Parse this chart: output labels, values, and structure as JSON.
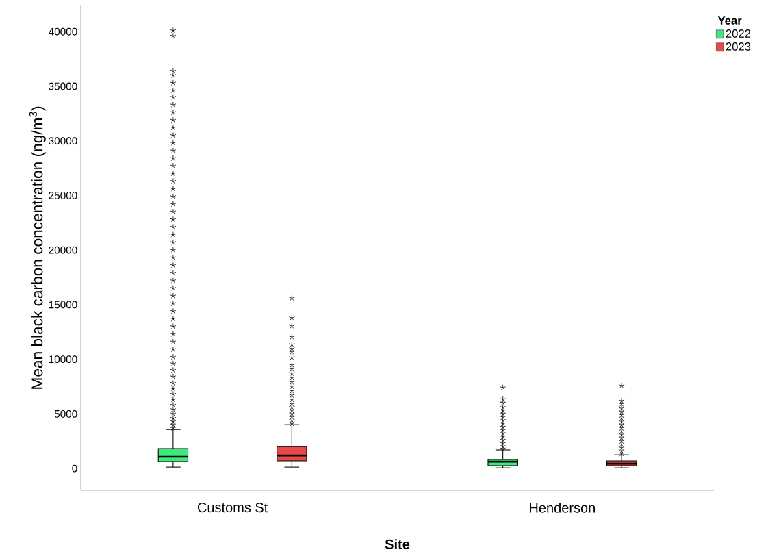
{
  "chart_data": {
    "type": "box",
    "xlabel": "Site",
    "ylabel": "Mean black carbon concentration (ng/m$^{3}$)",
    "legend_title": "Year",
    "categories": [
      "Customs St",
      "Henderson"
    ],
    "ylim": [
      -2000,
      42400
    ],
    "yticks": [
      0,
      5000,
      10000,
      15000,
      20000,
      25000,
      30000,
      35000,
      40000
    ],
    "legend": "top right",
    "marker": "star",
    "grid": false,
    "series": [
      {
        "name": "2022",
        "color": "#3ee87a",
        "boxes": [
          {
            "low": 125,
            "q1": 630,
            "median": 1070,
            "q3": 1820,
            "high": 3570,
            "outliers": [
              3700,
              4000,
              4300,
              4600,
              5000,
              5400,
              5800,
              6300,
              6800,
              7300,
              7800,
              8400,
              9000,
              9600,
              10200,
              10900,
              11600,
              12300,
              13000,
              13700,
              14400,
              15100,
              15800,
              16500,
              17200,
              17900,
              18600,
              19300,
              20000,
              20700,
              21400,
              22100,
              22800,
              23500,
              24200,
              24900,
              25600,
              26300,
              27000,
              27700,
              28400,
              29100,
              29800,
              30500,
              31200,
              31900,
              32600,
              33300,
              34000,
              34600,
              35300,
              36000,
              36400,
              39600,
              40100
            ]
          },
          {
            "low": 60,
            "q1": 250,
            "median": 630,
            "q3": 820,
            "high": 1700,
            "outliers": [
              1800,
              2000,
              2300,
              2600,
              2900,
              3200,
              3500,
              3800,
              4100,
              4400,
              4700,
              5000,
              5300,
              5600,
              6000,
              6330,
              7400
            ]
          }
        ]
      },
      {
        "name": "2023",
        "color": "#e84848",
        "boxes": [
          {
            "low": 125,
            "q1": 690,
            "median": 1190,
            "q3": 2000,
            "high": 4010,
            "outliers": [
              4100,
              4400,
              4700,
              5000,
              5300,
              5600,
              5900,
              6300,
              6700,
              7100,
              7500,
              7900,
              8300,
              8700,
              9100,
              9470,
              10160,
              10660,
              10970,
              11350,
              12040,
              13040,
              13800,
              15600
            ]
          },
          {
            "low": 60,
            "q1": 250,
            "median": 440,
            "q3": 690,
            "high": 1250,
            "outliers": [
              1350,
              1600,
              1900,
              2200,
              2500,
              2800,
              3100,
              3400,
              3700,
              4000,
              4300,
              4600,
              4900,
              5200,
              5500,
              5900,
              6200,
              7590
            ]
          }
        ]
      }
    ]
  }
}
